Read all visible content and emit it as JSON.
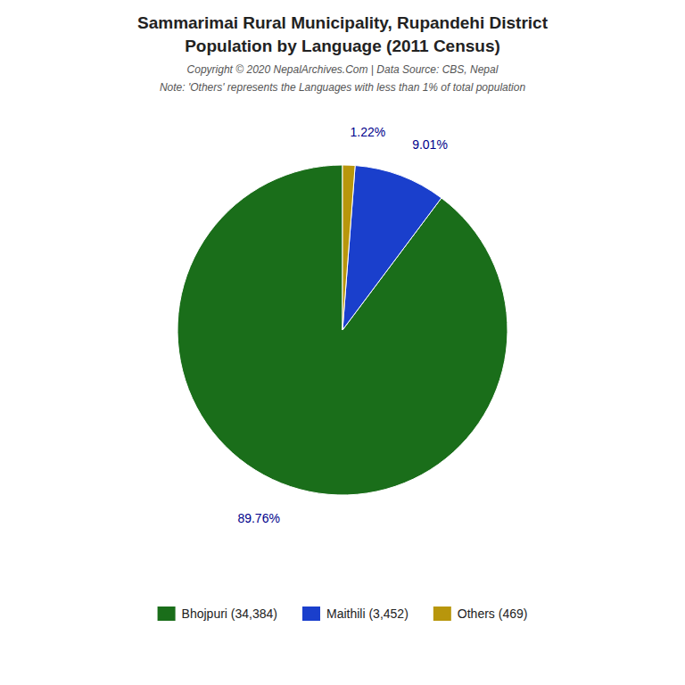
{
  "chart_data": {
    "type": "pie",
    "title": "Sammarimai Rural Municipality, Rupandehi District",
    "subtitle": "Population by Language (2011 Census)",
    "annotations": [
      "Copyright © 2020 NepalArchives.Com | Data Source: CBS, Nepal",
      "Note: 'Others' represents the Languages with less than 1% of total population"
    ],
    "categories": [
      "Bhojpuri (34,384)",
      "Maithili (3,452)",
      "Others (469)"
    ],
    "values": [
      89.76,
      9.01,
      1.22
    ],
    "value_labels": [
      "89.76%",
      "9.01%",
      "1.22%"
    ],
    "colors": [
      "#1a6e1a",
      "#1a3fcc",
      "#b8960c"
    ],
    "data_labels": true,
    "legend": "bottom"
  }
}
